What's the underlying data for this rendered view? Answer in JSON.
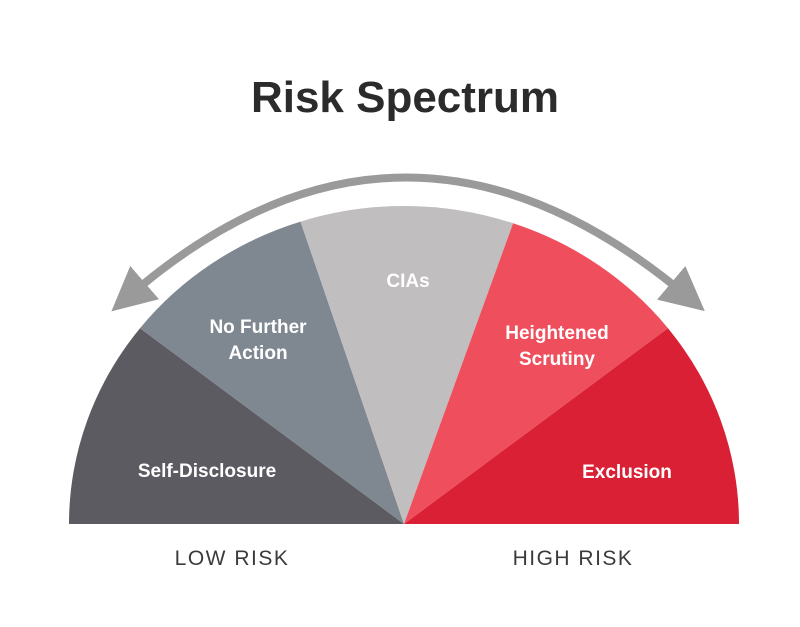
{
  "title": "Risk Spectrum",
  "segments": [
    {
      "label_lines": [
        "Self-Disclosure"
      ],
      "color": "#5b5b61"
    },
    {
      "label_lines": [
        "No Further",
        "Action"
      ],
      "color": "#7f8790"
    },
    {
      "label_lines": [
        "CIAs"
      ],
      "color": "#c0bebf"
    },
    {
      "label_lines": [
        "Heightened",
        "Scrutiny"
      ],
      "color": "#ef4f5c"
    },
    {
      "label_lines": [
        "Exclusion"
      ],
      "color": "#da2035"
    }
  ],
  "scale": {
    "low_label": "LOW RISK",
    "high_label": "HIGH RISK"
  },
  "colors": {
    "title": "#2b2b2b",
    "segment_text": "#ffffff",
    "scale_text": "#3b3b3b",
    "arrow": "#9a9a9a"
  },
  "icons": {
    "arrow": "double-headed-curved-arrow-icon"
  }
}
